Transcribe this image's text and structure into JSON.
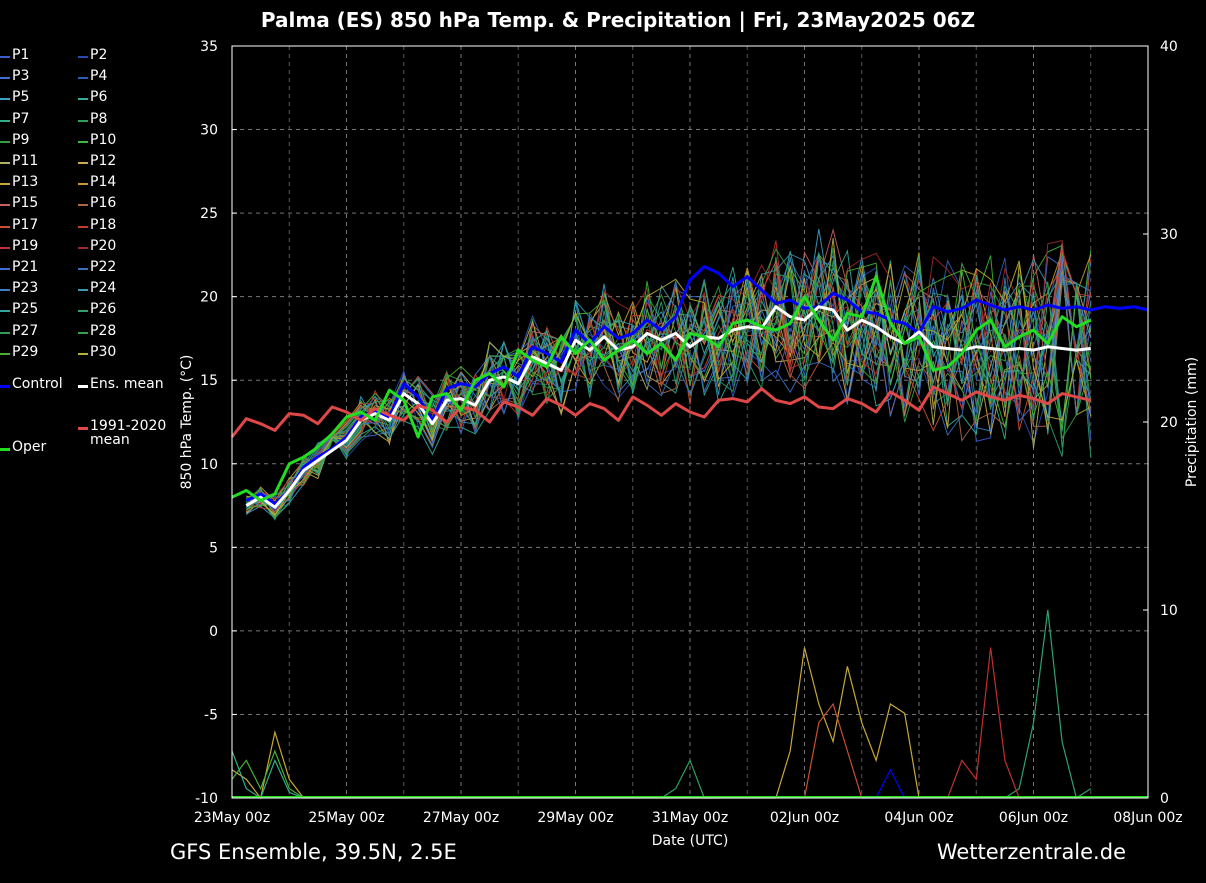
{
  "title": "Palma  (ES)  850 hPa Temp. & Precipitation | Fri, 23May2025 06Z",
  "footer": {
    "left": "GFS Ensemble, 39.5N, 2.5E",
    "right": "Wetterzentrale.de"
  },
  "legend": [
    {
      "label": "P1",
      "color": "#3a5fcd"
    },
    {
      "label": "P2",
      "color": "#2a4ab0"
    },
    {
      "label": "P3",
      "color": "#3f6fd0"
    },
    {
      "label": "P4",
      "color": "#2e5fb5"
    },
    {
      "label": "P5",
      "color": "#3aa0c8"
    },
    {
      "label": "P6",
      "color": "#2fae9a"
    },
    {
      "label": "P7",
      "color": "#2fae8a"
    },
    {
      "label": "P8",
      "color": "#2fa05a"
    },
    {
      "label": "P9",
      "color": "#30a040"
    },
    {
      "label": "P10",
      "color": "#3cb83c"
    },
    {
      "label": "P11",
      "color": "#b0b060"
    },
    {
      "label": "P12",
      "color": "#c8a850"
    },
    {
      "label": "P13",
      "color": "#c8a838"
    },
    {
      "label": "P14",
      "color": "#c89830"
    },
    {
      "label": "P15",
      "color": "#c86060"
    },
    {
      "label": "P16",
      "color": "#b06840"
    },
    {
      "label": "P17",
      "color": "#c85030"
    },
    {
      "label": "P18",
      "color": "#c83c2c"
    },
    {
      "label": "P19",
      "color": "#c03030"
    },
    {
      "label": "P20",
      "color": "#a02828"
    },
    {
      "label": "P21",
      "color": "#3a6fd0"
    },
    {
      "label": "P22",
      "color": "#3a70c0"
    },
    {
      "label": "P23",
      "color": "#3a80c8"
    },
    {
      "label": "P24",
      "color": "#3a98b0"
    },
    {
      "label": "P25",
      "color": "#2fa8a0"
    },
    {
      "label": "P26",
      "color": "#2fa070"
    },
    {
      "label": "P27",
      "color": "#30a050"
    },
    {
      "label": "P28",
      "color": "#38a040"
    },
    {
      "label": "P29",
      "color": "#48b030"
    },
    {
      "label": "P30",
      "color": "#b8b030"
    },
    {
      "label": "Control",
      "color": "#0000ff"
    },
    {
      "label": "Ens. mean",
      "color": "#ffffff"
    },
    {
      "label": "1991-2020\nmean",
      "color": "#e04848"
    },
    {
      "label": "Oper",
      "color": "#22dd22"
    }
  ],
  "chart_data": {
    "type": "line",
    "ylabel": "850 hPa Temp.  (°C)",
    "y2label": "Precipitation (mm)",
    "xlabel": "Date (UTC)",
    "ylim": [
      -10,
      35
    ],
    "y2lim": [
      0,
      40
    ],
    "yticks": [
      35,
      30,
      25,
      20,
      15,
      10,
      5,
      0,
      -5,
      -10
    ],
    "y2ticks": [
      40,
      30,
      20,
      10,
      0
    ],
    "xlim": [
      0,
      360
    ],
    "xticks": [
      {
        "x": 0,
        "label": "23May 00z"
      },
      {
        "x": 48,
        "label": "25May 00z"
      },
      {
        "x": 96,
        "label": "27May 00z"
      },
      {
        "x": 144,
        "label": "29May 00z"
      },
      {
        "x": 192,
        "label": "31May 00z"
      },
      {
        "x": 240,
        "label": "02Jun 00z"
      },
      {
        "x": 288,
        "label": "04Jun 00z"
      },
      {
        "x": 336,
        "label": "06Jun 00z"
      },
      {
        "x": 384,
        "label": "08Jun 00z"
      }
    ],
    "series": [
      {
        "name": "Control",
        "color": "#0000ff",
        "width": 3,
        "x": [
          6,
          12,
          18,
          24,
          30,
          36,
          42,
          48,
          54,
          60,
          66,
          72,
          78,
          84,
          90,
          96,
          102,
          108,
          114,
          120,
          126,
          132,
          138,
          144,
          150,
          156,
          162,
          168,
          174,
          180,
          186,
          192,
          198,
          204,
          210,
          216,
          222,
          228,
          234,
          240,
          246,
          252,
          258,
          264,
          270,
          276,
          282,
          288,
          294,
          300,
          306,
          312,
          318,
          324,
          330,
          336,
          342,
          348,
          354,
          360,
          366,
          372,
          378,
          384
        ],
        "y": [
          7.8,
          8.2,
          7.6,
          8.4,
          9.8,
          10.4,
          10.9,
          11.6,
          12.8,
          13.2,
          12.8,
          14.8,
          14.0,
          12.6,
          14.5,
          14.8,
          14.6,
          15.4,
          15.8,
          15.2,
          17.0,
          16.6,
          16.1,
          18.0,
          17.2,
          18.2,
          17.5,
          17.8,
          18.6,
          18.0,
          18.8,
          21.0,
          21.8,
          21.4,
          20.6,
          21.2,
          20.4,
          19.6,
          19.8,
          19.3,
          19.4,
          20.2,
          19.8,
          19.1,
          19.0,
          18.6,
          18.4,
          17.8,
          19.4,
          19.1,
          19.3,
          19.8,
          19.5,
          19.2,
          19.4,
          19.2,
          19.5,
          19.3,
          19.4,
          19.2,
          19.4,
          19.3,
          19.4,
          19.2
        ]
      },
      {
        "name": "Ens. mean",
        "color": "#ffffff",
        "width": 3,
        "x": [
          6,
          12,
          18,
          24,
          30,
          36,
          42,
          48,
          54,
          60,
          66,
          72,
          78,
          84,
          90,
          96,
          102,
          108,
          114,
          120,
          126,
          132,
          138,
          144,
          150,
          156,
          162,
          168,
          174,
          180,
          186,
          192,
          198,
          204,
          210,
          216,
          222,
          228,
          234,
          240,
          246,
          252,
          258,
          264,
          270,
          276,
          282,
          288,
          294,
          300,
          306,
          312,
          318,
          324,
          330,
          336,
          342,
          348,
          354,
          360
        ],
        "y": [
          7.5,
          8.0,
          7.4,
          8.4,
          9.6,
          10.2,
          10.8,
          11.4,
          12.6,
          13.0,
          12.6,
          14.2,
          13.6,
          12.4,
          13.8,
          13.9,
          13.5,
          15.0,
          15.2,
          14.8,
          16.4,
          16.0,
          15.6,
          17.4,
          16.8,
          17.6,
          16.8,
          17.0,
          17.8,
          17.4,
          17.8,
          17.0,
          17.6,
          17.5,
          18.0,
          18.2,
          18.1,
          19.4,
          18.8,
          18.6,
          19.4,
          19.2,
          18.0,
          18.6,
          18.2,
          17.6,
          17.2,
          17.9,
          17.0,
          16.9,
          16.8,
          17.0,
          16.9,
          16.8,
          16.9,
          16.8,
          17.0,
          16.9,
          16.8,
          16.9
        ]
      },
      {
        "name": "1991-2020 mean",
        "color": "#e04848",
        "width": 3,
        "x": [
          0,
          6,
          12,
          18,
          24,
          30,
          36,
          42,
          48,
          54,
          60,
          66,
          72,
          78,
          84,
          90,
          96,
          102,
          108,
          114,
          120,
          126,
          132,
          138,
          144,
          150,
          156,
          162,
          168,
          174,
          180,
          186,
          192,
          198,
          204,
          210,
          216,
          222,
          228,
          234,
          240,
          246,
          252,
          258,
          264,
          270,
          276,
          282,
          288,
          294,
          300,
          306,
          312,
          318,
          324,
          330,
          336,
          342,
          348,
          354,
          360
        ],
        "y": [
          11.6,
          12.7,
          12.4,
          12.0,
          13.0,
          12.9,
          12.4,
          13.4,
          13.1,
          12.6,
          13.3,
          12.9,
          12.6,
          13.5,
          13.2,
          12.5,
          13.4,
          13.2,
          12.5,
          13.7,
          13.4,
          12.9,
          13.9,
          13.5,
          12.9,
          13.6,
          13.3,
          12.6,
          14.0,
          13.5,
          12.9,
          13.6,
          13.1,
          12.8,
          13.8,
          13.9,
          13.7,
          14.5,
          13.8,
          13.6,
          14.0,
          13.4,
          13.3,
          13.9,
          13.6,
          13.1,
          14.3,
          13.8,
          13.2,
          14.6,
          14.2,
          13.8,
          14.3,
          14.0,
          13.8,
          14.1,
          13.9,
          13.6,
          14.2,
          14.0,
          13.8
        ]
      },
      {
        "name": "Oper",
        "color": "#22dd22",
        "width": 3,
        "x": [
          0,
          6,
          12,
          18,
          24,
          30,
          36,
          42,
          48,
          54,
          60,
          66,
          72,
          78,
          84,
          90,
          96,
          102,
          108,
          114,
          120,
          126,
          132,
          138,
          144,
          150,
          156,
          162,
          168,
          174,
          180,
          186,
          192,
          198,
          204,
          210,
          216,
          222,
          228,
          234,
          240,
          246,
          252,
          258,
          264,
          270,
          276,
          282,
          288,
          294,
          300,
          306,
          312,
          318,
          324,
          330,
          336,
          342,
          348,
          354,
          360
        ],
        "y": [
          8.0,
          8.4,
          7.8,
          8.2,
          10.0,
          10.4,
          11.0,
          11.8,
          12.8,
          13.1,
          12.6,
          14.4,
          13.8,
          11.6,
          14.0,
          14.2,
          13.2,
          15.0,
          15.4,
          14.6,
          16.8,
          16.2,
          15.8,
          17.6,
          16.6,
          17.4,
          16.2,
          16.8,
          17.4,
          16.6,
          17.2,
          16.2,
          17.8,
          17.6,
          17.0,
          18.4,
          18.6,
          18.2,
          18.0,
          18.4,
          20.0,
          18.6,
          17.4,
          19.0,
          18.8,
          21.2,
          18.4,
          17.2,
          17.6,
          15.6,
          15.8,
          16.6,
          18.0,
          18.6,
          17.0,
          17.6,
          18.0,
          17.2,
          18.8,
          18.2,
          18.6
        ]
      }
    ],
    "precipitation": [
      {
        "name": "P13",
        "color": "#c8a838",
        "x": [
          0,
          6,
          12,
          18,
          24,
          30,
          36,
          228,
          234,
          240,
          246,
          252,
          258,
          264,
          270,
          276,
          282,
          288
        ],
        "y": [
          1.5,
          1.0,
          0.0,
          3.5,
          1.0,
          0.0,
          0.0,
          0.0,
          2.5,
          8.0,
          5.0,
          3.0,
          7.0,
          4.0,
          2.0,
          5.0,
          4.5,
          0.0
        ]
      },
      {
        "name": "P26",
        "color": "#2fa070",
        "x": [
          324,
          330,
          336,
          342,
          348,
          354,
          360
        ],
        "y": [
          0.0,
          0.5,
          4.0,
          10.0,
          3.0,
          0.0,
          0.5
        ]
      },
      {
        "name": "P19",
        "color": "#c03030",
        "x": [
          300,
          306,
          312,
          318,
          324,
          330,
          336
        ],
        "y": [
          0.0,
          2.0,
          1.0,
          8.0,
          2.0,
          0.0,
          0.0
        ]
      },
      {
        "name": "P17",
        "color": "#c85030",
        "x": [
          240,
          246,
          252,
          258,
          264,
          270,
          276
        ],
        "y": [
          0.0,
          4.0,
          5.0,
          2.5,
          0.0,
          0.0,
          0.0
        ]
      },
      {
        "name": "P8",
        "color": "#2fa05a",
        "x": [
          180,
          186,
          192,
          198,
          204
        ],
        "y": [
          0.0,
          0.5,
          2.0,
          0.0,
          0.0
        ]
      },
      {
        "name": "Control",
        "color": "#0000ff",
        "x": [
          264,
          270,
          276,
          282,
          288
        ],
        "y": [
          0.0,
          0.0,
          1.5,
          0.0,
          0.0
        ]
      },
      {
        "name": "P29",
        "color": "#48b030",
        "x": [
          0,
          6,
          12,
          18,
          24,
          30
        ],
        "y": [
          1.0,
          2.0,
          0.5,
          2.5,
          0.5,
          0.0
        ]
      },
      {
        "name": "P7",
        "color": "#2fae8a",
        "x": [
          0,
          6,
          12,
          18,
          24,
          30
        ],
        "y": [
          2.5,
          0.5,
          0.0,
          2.0,
          0.3,
          0.0
        ]
      }
    ]
  }
}
